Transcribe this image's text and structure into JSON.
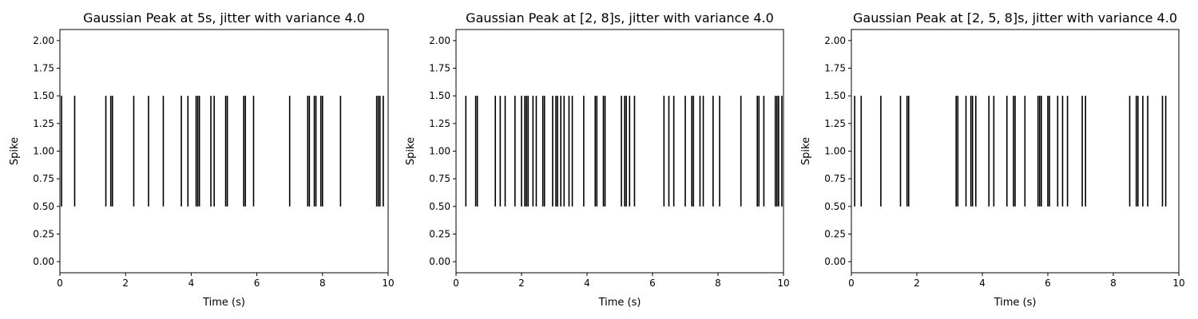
{
  "chart_data": [
    {
      "type": "eventplot",
      "title": "Gaussian Peak at 5s, jitter with variance 4.0",
      "xlabel": "Time (s)",
      "ylabel": "Spike",
      "xlim": [
        0,
        10
      ],
      "ylim": [
        -0.1,
        2.1
      ],
      "xticks": [
        "0",
        "2",
        "4",
        "6",
        "8",
        "10"
      ],
      "yticks": [
        "0.00",
        "0.25",
        "0.50",
        "0.75",
        "1.00",
        "1.25",
        "1.50",
        "1.75",
        "2.00"
      ],
      "line_range": [
        0.5,
        1.5
      ],
      "color": "#000000",
      "spikes": [
        0.05,
        0.45,
        1.4,
        1.55,
        1.6,
        2.25,
        2.7,
        3.15,
        3.7,
        3.9,
        4.15,
        4.2,
        4.25,
        4.6,
        4.7,
        5.05,
        5.1,
        5.6,
        5.65,
        5.9,
        7.0,
        7.55,
        7.6,
        7.75,
        7.8,
        7.95,
        8.0,
        8.55,
        9.65,
        9.7,
        9.75,
        9.85
      ]
    },
    {
      "type": "eventplot",
      "title": "Gaussian Peak at [2, 8]s, jitter with variance 4.0",
      "xlabel": "Time (s)",
      "ylabel": "Spike",
      "xlim": [
        0,
        10
      ],
      "ylim": [
        -0.1,
        2.1
      ],
      "xticks": [
        "0",
        "2",
        "4",
        "6",
        "8",
        "10"
      ],
      "yticks": [
        "0.00",
        "0.25",
        "0.50",
        "0.75",
        "1.00",
        "1.25",
        "1.50",
        "1.75",
        "2.00"
      ],
      "line_range": [
        0.5,
        1.5
      ],
      "color": "#000000",
      "spikes": [
        0.3,
        0.6,
        0.65,
        1.2,
        1.35,
        1.5,
        1.8,
        2.0,
        2.1,
        2.15,
        2.2,
        2.35,
        2.45,
        2.65,
        2.7,
        2.95,
        3.05,
        3.1,
        3.2,
        3.3,
        3.45,
        3.55,
        3.9,
        4.25,
        4.3,
        4.5,
        4.55,
        5.05,
        5.15,
        5.2,
        5.3,
        5.45,
        6.35,
        6.5,
        6.65,
        7.0,
        7.2,
        7.25,
        7.45,
        7.55,
        7.85,
        8.05,
        8.7,
        9.2,
        9.25,
        9.4,
        9.75,
        9.8,
        9.85,
        9.95
      ]
    },
    {
      "type": "eventplot",
      "title": "Gaussian Peak at [2, 5, 8]s, jitter with variance 4.0",
      "xlabel": "Time (s)",
      "ylabel": "Spike",
      "xlim": [
        0,
        10
      ],
      "ylim": [
        -0.1,
        2.1
      ],
      "xticks": [
        "0",
        "2",
        "4",
        "6",
        "8",
        "10"
      ],
      "yticks": [
        "0.00",
        "0.25",
        "0.50",
        "0.75",
        "1.00",
        "1.25",
        "1.50",
        "1.75",
        "2.00"
      ],
      "line_range": [
        0.5,
        1.5
      ],
      "color": "#000000",
      "spikes": [
        0.1,
        0.3,
        0.9,
        1.5,
        1.7,
        1.75,
        3.2,
        3.25,
        3.5,
        3.65,
        3.7,
        3.8,
        4.2,
        4.35,
        4.75,
        4.95,
        5.0,
        5.3,
        5.7,
        5.75,
        5.8,
        6.0,
        6.05,
        6.3,
        6.45,
        6.6,
        7.05,
        7.15,
        8.5,
        8.7,
        8.75,
        8.9,
        9.05,
        9.5,
        9.6
      ]
    }
  ]
}
